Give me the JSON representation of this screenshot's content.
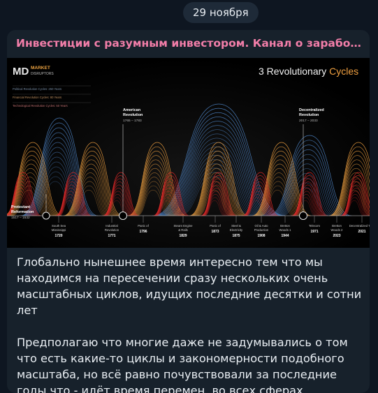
{
  "date": "29 ноября",
  "post": {
    "channel_name": "Инвестиции с разумным инвестором. Канал о заработке в...",
    "text_paragraphs": [
      "Глобально нынешнее время интересно тем что мы находимся на пересечении сразу нескольких очень масштабных циклов, идущих последние десятки и сотни лет",
      "Предполагаю что многие даже не задумывались о том что есть какие-то циклы и закономерности подобного масштаба, но всё равно почувствовали за последние годы что - идёт время перемен, во всех сферах"
    ]
  },
  "image": {
    "logo_mark": "MD",
    "logo_line1": "MARKET",
    "logo_line2": "DISRUPTORS",
    "title_prefix": "3 Revolutionary",
    "title_highlight": "Cycles",
    "legend": [
      "Political Revolution Cycles: 250 Years",
      "Financial Revolution Cycles: 80 Years",
      "Technological Revolution Cycles: 50 Years"
    ],
    "callouts": {
      "american": {
        "title1": "American",
        "title2": "Revolution",
        "years": "1765 – 1783"
      },
      "decentralized": {
        "title1": "Decentralized",
        "title2": "Revolution",
        "years": "2017 – 2033"
      },
      "protestant": {
        "title1": "Protestant",
        "title2": "Reformation",
        "years": "1517 – 1532"
      }
    },
    "events": [
      {
        "line1": "South Sea",
        "line2": "Mississippi",
        "year": "1720"
      },
      {
        "line1": "Industrial",
        "line2": "Revolution",
        "year": "1771"
      },
      {
        "line1": "Panic of",
        "line2": "",
        "year": "1796"
      },
      {
        "line1": "Steam Engine",
        "line2": "& Rails",
        "year": "1829"
      },
      {
        "line1": "Panic of",
        "line2": "",
        "year": "1873"
      },
      {
        "line1": "Steel &",
        "line2": "Electricity",
        "year": "1875"
      },
      {
        "line1": "Oil & Auto",
        "line2": "Production",
        "year": "1908"
      },
      {
        "line1": "Bretton",
        "line2": "Woods 1",
        "year": "1944"
      },
      {
        "line1": "Telecom",
        "line2": "",
        "year": "1971"
      },
      {
        "line1": "Bretton",
        "line2": "Woods 2",
        "year": "2023"
      },
      {
        "line1": "Decentralized Tech",
        "line2": "",
        "year": "2021"
      }
    ]
  },
  "colors": {
    "background": "#0e1621",
    "card": "#17212b",
    "channel_name": "#f27ea9",
    "text": "#e9eef3",
    "political_cycle": "#4f86c9",
    "financial_cycle": "#f0a040",
    "tech_cycle": "#e02828"
  }
}
